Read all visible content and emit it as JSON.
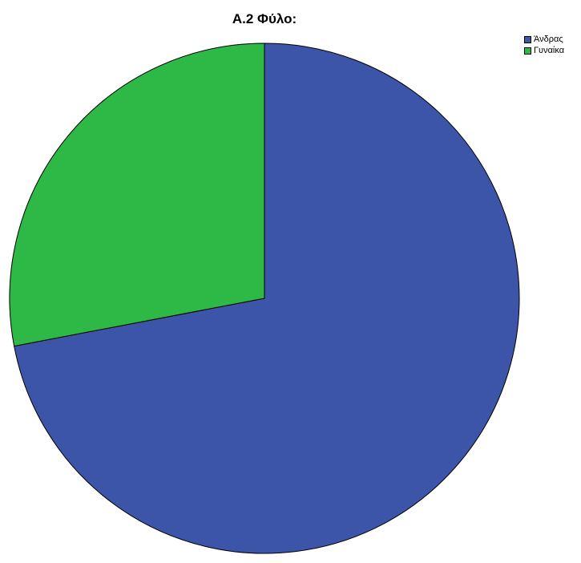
{
  "chart_data": {
    "type": "pie",
    "title": "A.2 Φύλο:",
    "categories": [
      "Άνδρας",
      "Γυναίκα"
    ],
    "values": [
      72,
      28
    ],
    "colors": [
      "#3d55a8",
      "#2eb845"
    ],
    "legend_position": "top-right"
  }
}
